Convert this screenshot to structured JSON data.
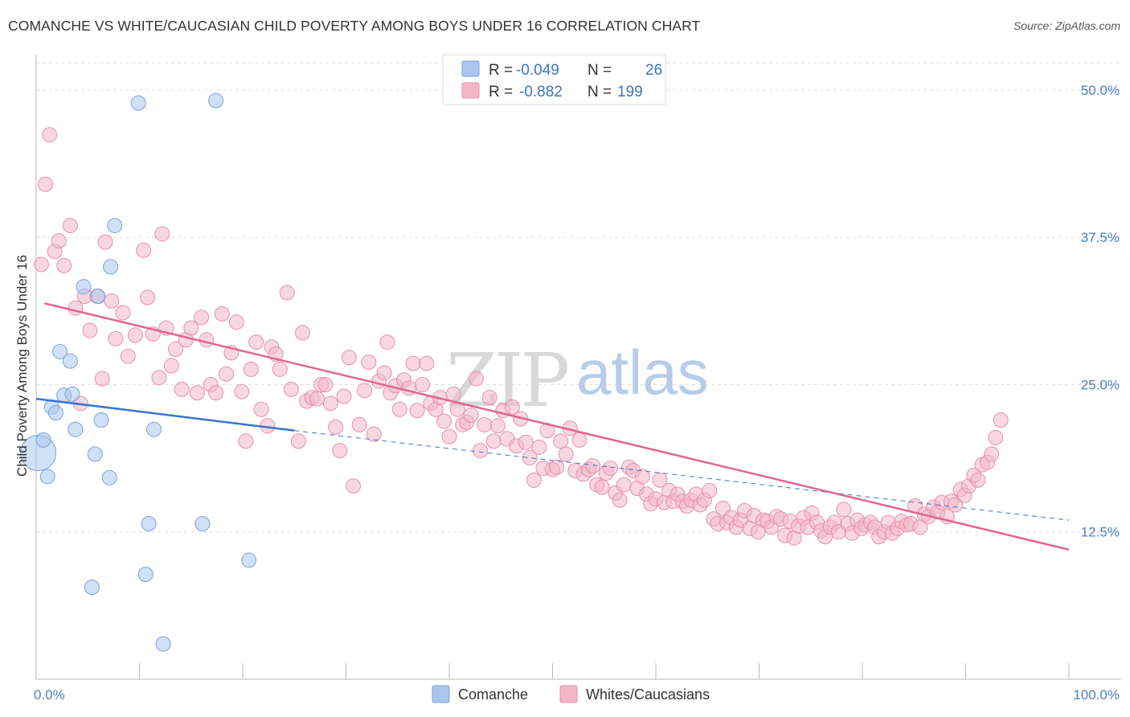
{
  "title": "COMANCHE VS WHITE/CAUCASIAN CHILD POVERTY AMONG BOYS UNDER 16 CORRELATION CHART",
  "source": "Source: ZipAtlas.com",
  "watermark": {
    "zip": "ZIP",
    "atlas": "atlas"
  },
  "colors": {
    "comanche": "#a9c6ee",
    "comanche_stroke": "#7aa3d9",
    "comanche_line": "#3a73d0",
    "whites": "#f3b6c9",
    "whites_stroke": "#e591ad",
    "whites_line": "#e0668f",
    "tick": "#4a7fc4",
    "grid": "#dddddd"
  },
  "chart_data": {
    "type": "scatter",
    "xlabel": "",
    "ylabel": "Child Poverty Among Boys Under 16",
    "xlim": [
      0,
      100
    ],
    "ylim": [
      0,
      53
    ],
    "x_tick_labels": [
      "0.0%",
      "100.0%"
    ],
    "y_ticks": [
      12.5,
      25.0,
      37.5,
      50.0
    ],
    "y_tick_labels": [
      "12.5%",
      "25.0%",
      "37.5%",
      "50.0%"
    ],
    "grid": true,
    "legend": {
      "placement": "top-center",
      "rows": [
        {
          "r_label": "R =",
          "r": "-0.049",
          "n_label": "N =",
          "n": "26"
        },
        {
          "r_label": "R =",
          "r": "-0.882",
          "n_label": "N =",
          "n": "199"
        }
      ]
    },
    "bottom_legend": [
      "Comanche",
      "Whites/Caucasians"
    ],
    "series": [
      {
        "name": "Comanche",
        "trend": {
          "x0": 0,
          "y0": 23.8,
          "x1": 25,
          "y1": 21.1,
          "dashed_to_x": 100,
          "dashed_to_y": 13.5
        },
        "points": [
          [
            0.2,
            19.2,
            "big"
          ],
          [
            0.7,
            20.3
          ],
          [
            1.1,
            17.2
          ],
          [
            1.5,
            23.1
          ],
          [
            1.9,
            22.6
          ],
          [
            2.3,
            27.8
          ],
          [
            2.7,
            24.1
          ],
          [
            3.3,
            27.0
          ],
          [
            3.5,
            24.2
          ],
          [
            3.8,
            21.2
          ],
          [
            4.6,
            33.3
          ],
          [
            5.4,
            7.8
          ],
          [
            5.7,
            19.1
          ],
          [
            6.0,
            32.5
          ],
          [
            6.3,
            22.0
          ],
          [
            7.1,
            17.1
          ],
          [
            7.2,
            35.0
          ],
          [
            7.6,
            38.5
          ],
          [
            9.9,
            48.9
          ],
          [
            10.6,
            8.9
          ],
          [
            10.9,
            13.2
          ],
          [
            11.4,
            21.2
          ],
          [
            12.3,
            3.0
          ],
          [
            16.1,
            13.2
          ],
          [
            17.4,
            49.1
          ],
          [
            20.6,
            10.1
          ]
        ]
      },
      {
        "name": "Whites/Caucasians",
        "trend": {
          "x0": 0.8,
          "y0": 31.9,
          "x1": 100,
          "y1": 11.0
        },
        "points": [
          [
            0.5,
            35.2
          ],
          [
            0.9,
            42.0
          ],
          [
            1.3,
            46.2
          ],
          [
            1.8,
            36.3
          ],
          [
            2.2,
            37.2
          ],
          [
            2.7,
            35.1
          ],
          [
            3.3,
            38.5
          ],
          [
            3.8,
            31.5
          ],
          [
            4.3,
            23.4
          ],
          [
            4.7,
            32.5
          ],
          [
            5.2,
            29.6
          ],
          [
            5.9,
            32.5
          ],
          [
            6.4,
            25.5
          ],
          [
            6.7,
            37.1
          ],
          [
            7.3,
            32.1
          ],
          [
            7.7,
            28.9
          ],
          [
            8.4,
            31.1
          ],
          [
            8.9,
            27.4
          ],
          [
            9.6,
            29.2
          ],
          [
            10.4,
            36.4
          ],
          [
            10.8,
            32.4
          ],
          [
            11.3,
            29.3
          ],
          [
            11.9,
            25.6
          ],
          [
            12.2,
            37.8
          ],
          [
            12.6,
            29.8
          ],
          [
            13.1,
            26.6
          ],
          [
            13.5,
            28.0
          ],
          [
            14.1,
            24.6
          ],
          [
            14.5,
            28.8
          ],
          [
            15.0,
            29.8
          ],
          [
            15.6,
            24.3
          ],
          [
            16.0,
            30.7
          ],
          [
            16.5,
            28.8
          ],
          [
            16.9,
            25.0
          ],
          [
            17.4,
            24.3
          ],
          [
            18.0,
            31.0
          ],
          [
            18.4,
            25.9
          ],
          [
            18.9,
            27.7
          ],
          [
            19.4,
            30.3
          ],
          [
            19.9,
            24.4
          ],
          [
            20.3,
            20.2
          ],
          [
            20.8,
            26.3
          ],
          [
            21.3,
            28.6
          ],
          [
            21.8,
            22.9
          ],
          [
            22.4,
            21.5
          ],
          [
            22.8,
            28.2
          ],
          [
            23.2,
            27.6
          ],
          [
            23.6,
            26.3
          ],
          [
            24.3,
            32.8
          ],
          [
            24.7,
            24.6
          ],
          [
            25.4,
            20.2
          ],
          [
            25.8,
            29.4
          ],
          [
            26.2,
            23.6
          ],
          [
            26.7,
            23.9
          ],
          [
            27.2,
            23.8
          ],
          [
            27.6,
            25.0
          ],
          [
            28.0,
            25.0
          ],
          [
            28.5,
            23.4
          ],
          [
            29.0,
            21.4
          ],
          [
            29.4,
            19.4
          ],
          [
            29.8,
            24.0
          ],
          [
            30.3,
            27.3
          ],
          [
            30.7,
            16.4
          ],
          [
            31.3,
            21.6
          ],
          [
            31.8,
            24.5
          ],
          [
            32.2,
            26.9
          ],
          [
            32.7,
            20.8
          ],
          [
            33.2,
            25.3
          ],
          [
            33.7,
            26.0
          ],
          [
            34.0,
            28.6
          ],
          [
            34.3,
            24.3
          ],
          [
            34.8,
            24.9
          ],
          [
            35.2,
            22.9
          ],
          [
            35.6,
            25.4
          ],
          [
            36.1,
            24.7
          ],
          [
            36.5,
            26.8
          ],
          [
            36.9,
            22.8
          ],
          [
            37.4,
            25.0
          ],
          [
            37.8,
            26.8
          ],
          [
            38.2,
            23.4
          ],
          [
            38.7,
            22.9
          ],
          [
            39.1,
            23.9
          ],
          [
            39.5,
            21.9
          ],
          [
            40.0,
            20.6
          ],
          [
            40.4,
            24.2
          ],
          [
            40.8,
            22.9
          ],
          [
            41.3,
            21.6
          ],
          [
            41.7,
            21.8
          ],
          [
            42.1,
            22.4
          ],
          [
            42.6,
            25.5
          ],
          [
            43.0,
            19.4
          ],
          [
            43.4,
            21.6
          ],
          [
            43.9,
            23.9
          ],
          [
            44.3,
            20.2
          ],
          [
            44.7,
            21.5
          ],
          [
            45.2,
            22.8
          ],
          [
            45.6,
            20.4
          ],
          [
            46.1,
            23.1
          ],
          [
            46.5,
            19.8
          ],
          [
            46.9,
            22.1
          ],
          [
            47.4,
            20.1
          ],
          [
            47.8,
            18.8
          ],
          [
            48.2,
            16.9
          ],
          [
            48.7,
            19.7
          ],
          [
            49.1,
            17.9
          ],
          [
            49.5,
            21.1
          ],
          [
            50.0,
            17.8
          ],
          [
            50.4,
            18.0
          ],
          [
            50.8,
            20.2
          ],
          [
            51.3,
            19.1
          ],
          [
            51.7,
            21.3
          ],
          [
            52.2,
            17.7
          ],
          [
            52.6,
            20.3
          ],
          [
            53.0,
            17.4
          ],
          [
            53.5,
            17.8
          ],
          [
            53.9,
            18.1
          ],
          [
            54.3,
            16.5
          ],
          [
            54.8,
            16.3
          ],
          [
            55.2,
            17.5
          ],
          [
            55.6,
            17.9
          ],
          [
            56.1,
            15.8
          ],
          [
            56.5,
            15.2
          ],
          [
            56.9,
            16.5
          ],
          [
            57.4,
            18.0
          ],
          [
            57.8,
            17.7
          ],
          [
            58.2,
            16.2
          ],
          [
            58.7,
            17.2
          ],
          [
            59.1,
            15.7
          ],
          [
            59.5,
            14.9
          ],
          [
            60.0,
            15.3
          ],
          [
            60.4,
            16.9
          ],
          [
            60.8,
            15.0
          ],
          [
            61.3,
            16.0
          ],
          [
            61.7,
            15.1
          ],
          [
            62.1,
            15.7
          ],
          [
            62.6,
            15.1
          ],
          [
            63.0,
            14.7
          ],
          [
            63.4,
            15.2
          ],
          [
            63.9,
            15.7
          ],
          [
            64.3,
            14.8
          ],
          [
            64.7,
            15.2
          ],
          [
            65.2,
            16.0
          ],
          [
            65.6,
            13.6
          ],
          [
            66.0,
            13.2
          ],
          [
            66.5,
            14.5
          ],
          [
            66.9,
            13.3
          ],
          [
            67.3,
            13.7
          ],
          [
            67.8,
            12.9
          ],
          [
            68.2,
            13.5
          ],
          [
            68.6,
            14.3
          ],
          [
            69.1,
            12.8
          ],
          [
            69.5,
            13.9
          ],
          [
            69.9,
            12.5
          ],
          [
            70.4,
            13.5
          ],
          [
            70.8,
            13.4
          ],
          [
            71.2,
            12.9
          ],
          [
            71.7,
            13.8
          ],
          [
            72.1,
            13.6
          ],
          [
            72.5,
            12.2
          ],
          [
            73.0,
            13.4
          ],
          [
            73.4,
            12.0
          ],
          [
            73.8,
            13.0
          ],
          [
            74.3,
            13.7
          ],
          [
            74.7,
            12.9
          ],
          [
            75.1,
            14.1
          ],
          [
            75.6,
            13.3
          ],
          [
            76.0,
            12.6
          ],
          [
            76.4,
            12.1
          ],
          [
            76.9,
            12.9
          ],
          [
            77.3,
            13.3
          ],
          [
            77.7,
            12.5
          ],
          [
            78.2,
            14.4
          ],
          [
            78.6,
            13.2
          ],
          [
            79.0,
            12.4
          ],
          [
            79.5,
            13.5
          ],
          [
            79.9,
            12.8
          ],
          [
            80.3,
            13.1
          ],
          [
            80.8,
            13.3
          ],
          [
            81.2,
            12.9
          ],
          [
            81.6,
            12.1
          ],
          [
            82.1,
            12.5
          ],
          [
            82.5,
            13.3
          ],
          [
            82.9,
            12.4
          ],
          [
            83.4,
            12.8
          ],
          [
            83.8,
            13.4
          ],
          [
            84.3,
            13.1
          ],
          [
            84.7,
            13.2
          ],
          [
            85.1,
            14.7
          ],
          [
            85.6,
            12.9
          ],
          [
            86.0,
            14.0
          ],
          [
            86.4,
            13.8
          ],
          [
            86.9,
            14.6
          ],
          [
            87.3,
            14.2
          ],
          [
            87.7,
            15.0
          ],
          [
            88.2,
            13.8
          ],
          [
            88.6,
            15.1
          ],
          [
            89.0,
            14.8
          ],
          [
            89.5,
            16.1
          ],
          [
            89.9,
            15.6
          ],
          [
            90.3,
            16.4
          ],
          [
            90.8,
            17.3
          ],
          [
            91.2,
            16.9
          ],
          [
            91.6,
            18.2
          ],
          [
            92.1,
            18.4
          ],
          [
            92.5,
            19.1
          ],
          [
            92.9,
            20.5
          ],
          [
            93.4,
            22.0
          ]
        ]
      }
    ]
  }
}
